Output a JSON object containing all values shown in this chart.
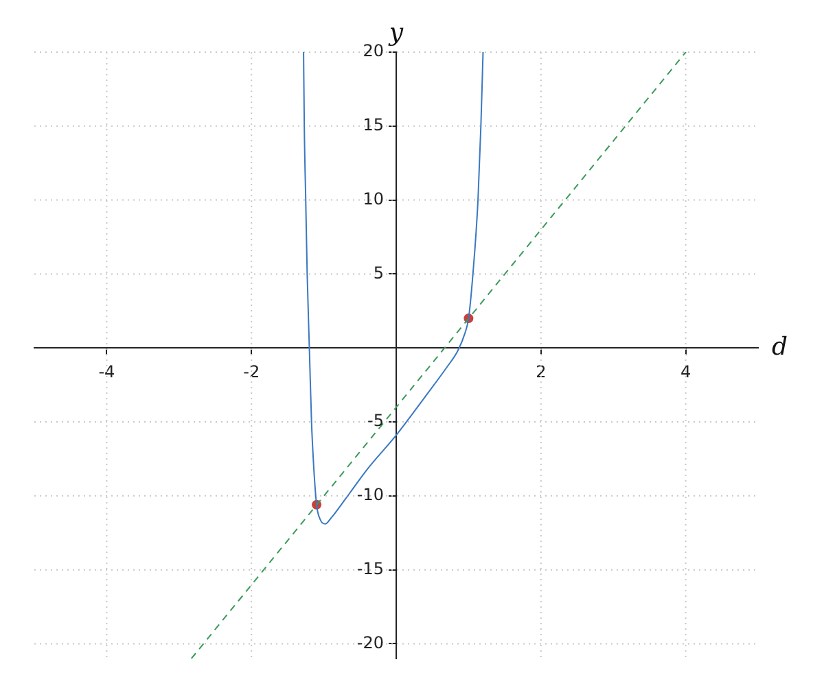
{
  "chart_data": {
    "type": "line",
    "xlabel": "d",
    "ylabel": "y",
    "xlim": [
      -5,
      5
    ],
    "ylim": [
      -21,
      20
    ],
    "xticks": [
      -4,
      -2,
      2,
      4
    ],
    "yticks": [
      -20,
      -15,
      -10,
      -5,
      5,
      10,
      15,
      20
    ],
    "grid": true,
    "legend": false,
    "series": [
      {
        "color": "#3a78c2",
        "line_style": "solid",
        "marker": "none",
        "x": [
          -1.28,
          -1.27,
          -1.25,
          -1.23,
          -1.2,
          -1.17,
          -1.14,
          -1.1,
          -1.05,
          -0.98,
          -0.9,
          -0.7,
          -0.4,
          0,
          0.4,
          0.7,
          0.85,
          0.95,
          1,
          1.06,
          1.13,
          1.17,
          1.2
        ],
        "values": [
          20,
          15,
          10,
          5,
          0,
          -5,
          -8,
          -10.6,
          -11.6,
          -11.9,
          -11.5,
          -10.2,
          -8.2,
          -5.9,
          -3.3,
          -1.3,
          -0.2,
          1,
          2,
          5,
          10,
          15,
          20
        ]
      },
      {
        "color": "#3a9a5a",
        "line_style": "dashed",
        "marker": "none",
        "x": [
          -2.83,
          4
        ],
        "values": [
          -21,
          20
        ]
      },
      {
        "type": "scatter",
        "color": "#c8403a",
        "marker": "circle",
        "x": [
          -1.1,
          1
        ],
        "values": [
          -10.6,
          2
        ]
      }
    ]
  }
}
